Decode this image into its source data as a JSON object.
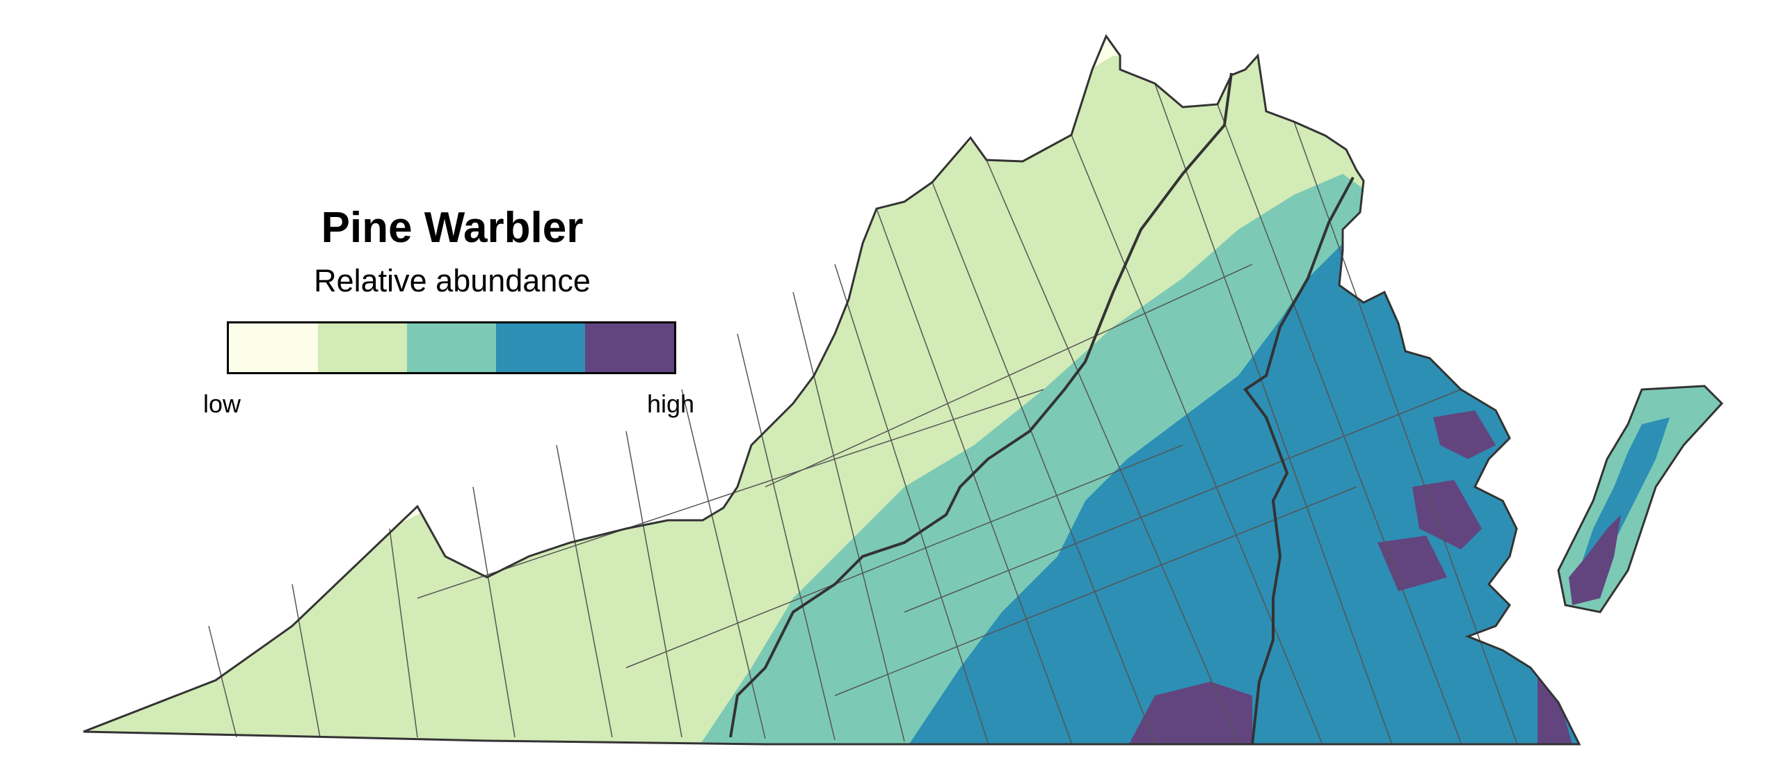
{
  "legend": {
    "title": "Pine Warbler",
    "subtitle": "Relative abundance",
    "low_label": "low",
    "high_label": "high",
    "colors": [
      "#fdfee9",
      "#d3ebb6",
      "#7ccab5",
      "#2d8fb4",
      "#62457f"
    ]
  },
  "map": {
    "region": "Virginia",
    "county_line_color": "#555555",
    "boundary_color": "#333333",
    "background": "#ffffff"
  }
}
